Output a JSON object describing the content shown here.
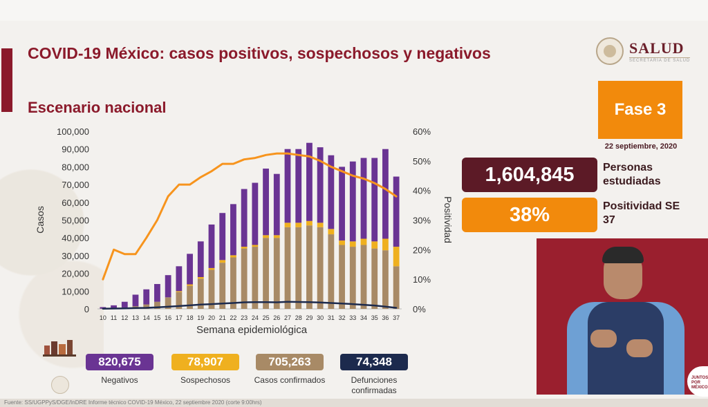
{
  "header": {
    "title": "COVID-19 México: casos positivos, sospechosos y negativos",
    "subtitle": "Escenario nacional",
    "logo_text": "SALUD",
    "logo_subtext": "SECRETARÍA DE SALUD"
  },
  "phase": {
    "label": "Fase 3",
    "date": "22 septiembre, 2020"
  },
  "stats": [
    {
      "value": "1,604,845",
      "label": "Personas estudiadas",
      "color": "#5c1a26"
    },
    {
      "value": "38%",
      "label": "Positividad SE 37",
      "color": "#f28a0c"
    }
  ],
  "summary": [
    {
      "value": "820,675",
      "label": "Negativos",
      "color": "#6a3493"
    },
    {
      "value": "78,907",
      "label": "Sospechosos",
      "color": "#efb01f"
    },
    {
      "value": "705,263",
      "label": "Casos confirmados",
      "color": "#a88a66"
    },
    {
      "value": "74,348",
      "label": "Defunciones confirmadas",
      "color": "#1c2a4d"
    }
  ],
  "corner_badge": "JUNTOS POR MÉXICO",
  "chart_data": {
    "type": "bar",
    "stacked": true,
    "title": "",
    "xlabel": "Semana epidemiológica",
    "ylabel": "Casos",
    "y2label": "Positividad",
    "ylim": [
      0,
      100000
    ],
    "y2lim": [
      0,
      60
    ],
    "yticks": [
      "0",
      "10,000",
      "20,000",
      "30,000",
      "40,000",
      "50,000",
      "60,000",
      "70,000",
      "80,000",
      "90,000",
      "100,000"
    ],
    "y2ticks": [
      "0%",
      "10%",
      "20%",
      "30%",
      "40%",
      "50%",
      "60%"
    ],
    "categories": [
      "10",
      "11",
      "12",
      "13",
      "14",
      "15",
      "16",
      "17",
      "18",
      "19",
      "20",
      "21",
      "22",
      "23",
      "24",
      "25",
      "26",
      "27",
      "28",
      "29",
      "30",
      "31",
      "32",
      "33",
      "34",
      "35",
      "36",
      "37"
    ],
    "series": [
      {
        "kind": "bar",
        "color": "#a88a66",
        "values": [
          100,
          300,
          800,
          1500,
          2500,
          4000,
          6500,
          9500,
          13000,
          17000,
          22000,
          26000,
          29000,
          34000,
          35000,
          40000,
          40000,
          46000,
          46000,
          47000,
          46000,
          42000,
          36000,
          35000,
          36000,
          34000,
          33000,
          24000
        ]
      },
      {
        "kind": "bar",
        "color": "#efb01f",
        "values": [
          0,
          0,
          0,
          0,
          0,
          0,
          0,
          500,
          800,
          900,
          1000,
          1500,
          1200,
          1000,
          1000,
          1500,
          1500,
          2500,
          2500,
          2500,
          2500,
          3000,
          2500,
          3000,
          3500,
          4000,
          6500,
          11000
        ]
      },
      {
        "kind": "bar",
        "color": "#6a3493",
        "values": [
          900,
          1700,
          3200,
          6500,
          8500,
          10000,
          12500,
          14000,
          17200,
          20100,
          24500,
          26500,
          28800,
          32500,
          35000,
          37500,
          34500,
          41500,
          41500,
          44000,
          42500,
          41500,
          41500,
          45000,
          45500,
          47000,
          50500,
          39500
        ]
      },
      {
        "kind": "line",
        "color": "#1c2a4d",
        "axis": "left",
        "values": [
          80,
          200,
          300,
          450,
          600,
          900,
          1200,
          1600,
          2000,
          2400,
          2700,
          3000,
          3300,
          3700,
          3800,
          3800,
          3700,
          4000,
          3900,
          3800,
          3600,
          3300,
          3000,
          2700,
          2300,
          1900,
          1300,
          600
        ]
      },
      {
        "kind": "line",
        "color": "#f7941d",
        "axis": "right",
        "values": [
          10,
          20,
          18.5,
          18.5,
          24,
          30,
          38,
          42,
          42,
          44.5,
          46.5,
          49,
          49,
          50.5,
          51,
          52,
          52.5,
          52.5,
          52,
          51.5,
          50,
          48,
          46.5,
          45,
          44,
          42.5,
          40.5,
          38
        ]
      }
    ]
  },
  "footer": "Fuente: SS/UGPPyS/DGE/InDRE Informe técnico COVID-19 México, 22 septiembre 2020 (corte 9:00hrs)"
}
